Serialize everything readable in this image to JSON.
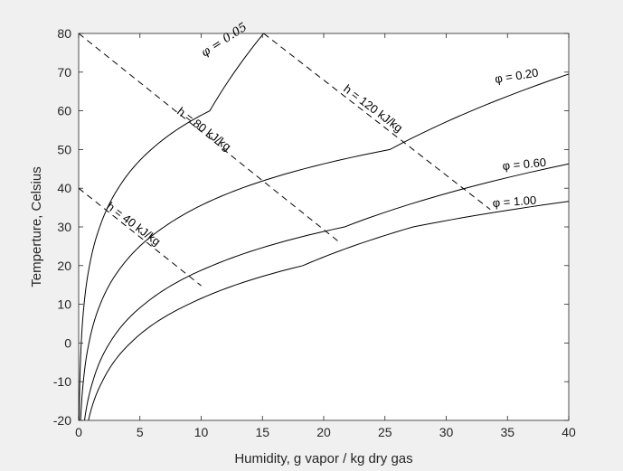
{
  "figure": {
    "background": "#f0f0f0",
    "axes_background": "#ffffff",
    "line_color": "#000000",
    "text_color": "#262626"
  },
  "chart_data": {
    "type": "line",
    "title": "",
    "xlabel": "Humidity, g vapor / kg dry gas",
    "ylabel": "Temperture, Celsius",
    "xlim": [
      0,
      40
    ],
    "ylim": [
      -20,
      80
    ],
    "xticks": [
      0,
      5,
      10,
      15,
      20,
      25,
      30,
      35,
      40
    ],
    "yticks": [
      -20,
      -10,
      0,
      10,
      20,
      30,
      40,
      50,
      60,
      70,
      80
    ],
    "grid": false,
    "legend": "none",
    "series": [
      {
        "label": "φ = 0.05",
        "style": "solid",
        "x": [
          0.041,
          0.096,
          0.211,
          0.441,
          0.885,
          1.72,
          3.23,
          5.92,
          10.7,
          15.1
        ],
        "y": [
          -20,
          -10,
          0,
          10,
          20,
          30,
          40,
          50,
          60,
          80
        ]
      },
      {
        "label": "φ = 0.20",
        "style": "solid",
        "x": [
          0.16,
          0.38,
          0.84,
          1.76,
          3.56,
          6.98,
          13.3,
          25.4,
          40.0
        ],
        "y": [
          -20,
          -10,
          0,
          10,
          20,
          30,
          40,
          50,
          69.5
        ]
      },
      {
        "label": "φ = 0.60",
        "style": "solid",
        "x": [
          0.48,
          1.15,
          2.53,
          5.35,
          10.9,
          21.7,
          40.0
        ],
        "y": [
          -20,
          -10,
          0,
          10,
          20,
          30,
          46.3
        ]
      },
      {
        "label": "φ = 1.00",
        "style": "solid",
        "x": [
          0.8,
          1.92,
          4.23,
          8.97,
          18.3,
          27.3,
          40.0
        ],
        "y": [
          -20,
          -10,
          0,
          10,
          20,
          30,
          36.6
        ]
      },
      {
        "label": "h = 40 kJ/kg",
        "style": "dashed",
        "x": [
          0,
          10.0
        ],
        "y": [
          40,
          14.8
        ]
      },
      {
        "label": "h = 80 kJ/kg",
        "style": "dashed",
        "x": [
          0,
          21.3
        ],
        "y": [
          80,
          26.0
        ]
      },
      {
        "label": "h = 120 kJ/kg",
        "style": "dashed",
        "x": [
          15.1,
          33.6
        ],
        "y": [
          80,
          34.5
        ]
      }
    ]
  }
}
